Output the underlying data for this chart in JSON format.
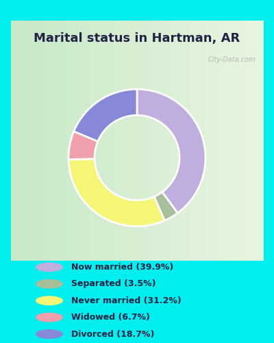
{
  "title": "Marital status in Hartman, AR",
  "title_fontsize": 13,
  "background_color": "#00EEEE",
  "chart_bg_color": "#d4edd8",
  "categories": [
    "Now married",
    "Separated",
    "Never married",
    "Widowed",
    "Divorced"
  ],
  "values": [
    39.9,
    3.5,
    31.2,
    6.7,
    18.7
  ],
  "colors": [
    "#c0aede",
    "#a8bf9c",
    "#f5f578",
    "#f0a0ac",
    "#8888d8"
  ],
  "legend_labels": [
    "Now married (39.9%)",
    "Separated (3.5%)",
    "Never married (31.2%)",
    "Widowed (6.7%)",
    "Divorced (18.7%)"
  ],
  "legend_marker_colors": [
    "#c0aede",
    "#a8bf9c",
    "#f5f578",
    "#f0a0ac",
    "#8888d8"
  ],
  "donut_width": 0.38,
  "start_angle": 90,
  "text_color": "#222244",
  "watermark": "City-Data.com"
}
